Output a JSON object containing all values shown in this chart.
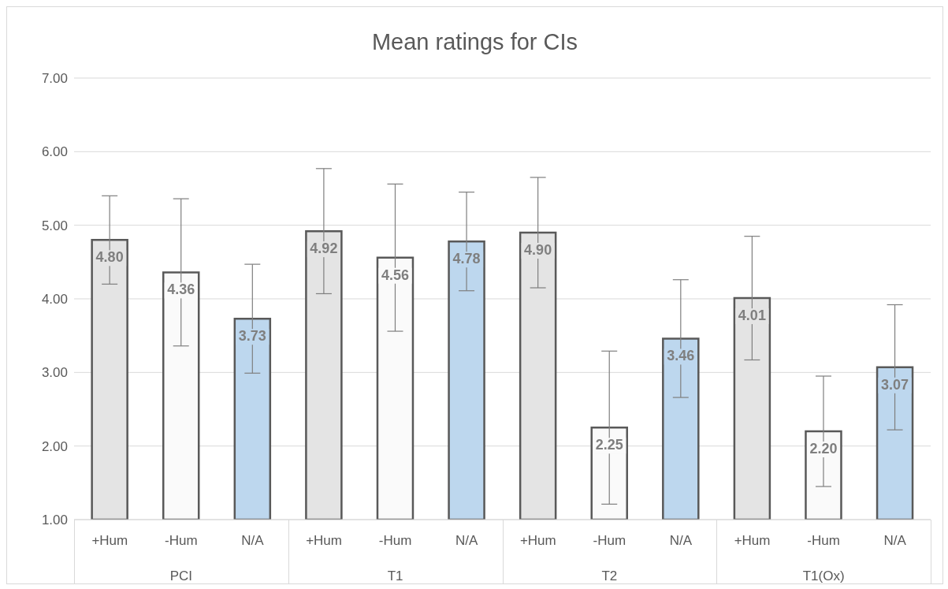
{
  "chart_data": {
    "type": "bar",
    "title": "Mean ratings for CIs",
    "categories": [
      "+Hum",
      "-Hum",
      "N/A",
      "+Hum",
      "-Hum",
      "N/A",
      "+Hum",
      "-Hum",
      "N/A",
      "+Hum",
      "-Hum",
      "N/A"
    ],
    "values": [
      4.8,
      4.36,
      3.73,
      4.92,
      4.56,
      4.78,
      4.9,
      2.25,
      3.46,
      4.01,
      2.2,
      3.07
    ],
    "value_labels": [
      "4.80",
      "4.36",
      "3.73",
      "4.92",
      "4.56",
      "4.78",
      "4.90",
      "2.25",
      "3.46",
      "4.01",
      "2.20",
      "3.07"
    ],
    "errors": [
      0.6,
      1.0,
      0.74,
      0.85,
      1.0,
      0.67,
      0.75,
      1.04,
      0.8,
      0.84,
      0.75,
      0.85
    ],
    "colors": [
      "#e4e4e4",
      "#fafafa",
      "#bdd7ee",
      "#e4e4e4",
      "#fafafa",
      "#bdd7ee",
      "#e4e4e4",
      "#fafafa",
      "#bdd7ee",
      "#e4e4e4",
      "#fafafa",
      "#bdd7ee"
    ],
    "annotations": [
      "PCI",
      "T1",
      "T2",
      "T1(Ox)"
    ],
    "ylim": [
      1,
      7
    ],
    "yticks": [
      {
        "value": 1,
        "label": "1.00"
      },
      {
        "value": 2,
        "label": "2.00"
      },
      {
        "value": 3,
        "label": "3.00"
      },
      {
        "value": 4,
        "label": "4.00"
      },
      {
        "value": 5,
        "label": "5.00"
      },
      {
        "value": 6,
        "label": "6.00"
      },
      {
        "value": 7,
        "label": "7.00"
      }
    ],
    "grid": "y",
    "legend": false
  }
}
